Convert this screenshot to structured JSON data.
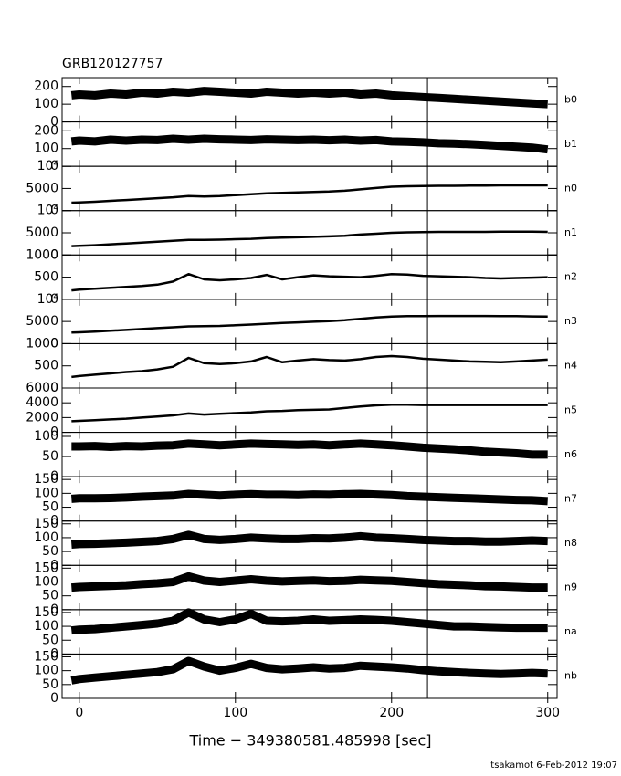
{
  "footer": "tsakamot  6-Feb-2012 19:07",
  "chart_data": [
    {
      "type": "line",
      "title": "GRB120127757",
      "label": "b0",
      "xlim": [
        -11,
        306
      ],
      "xticks": [
        0,
        100,
        200,
        300
      ],
      "ylim": [
        0,
        250
      ],
      "yticks": [
        0,
        100,
        200
      ],
      "vline": 223,
      "color": "#000000",
      "x": [
        -5,
        0,
        10,
        20,
        30,
        40,
        50,
        60,
        70,
        80,
        90,
        100,
        110,
        120,
        130,
        140,
        150,
        160,
        170,
        180,
        190,
        200,
        210,
        220,
        230,
        240,
        250,
        260,
        270,
        280,
        290,
        300
      ],
      "values": [
        150,
        155,
        150,
        160,
        155,
        165,
        160,
        170,
        165,
        175,
        170,
        165,
        160,
        170,
        165,
        160,
        165,
        160,
        165,
        155,
        160,
        150,
        145,
        140,
        135,
        130,
        125,
        120,
        115,
        110,
        105,
        100
      ]
    },
    {
      "type": "line",
      "label": "b1",
      "xlim": [
        -11,
        306
      ],
      "xticks": [
        0,
        100,
        200,
        300
      ],
      "ylim": [
        0,
        250
      ],
      "yticks": [
        0,
        100,
        200
      ],
      "vline": 223,
      "color": "#000000",
      "x": [
        -5,
        0,
        10,
        20,
        30,
        40,
        50,
        60,
        70,
        80,
        90,
        100,
        110,
        120,
        130,
        140,
        150,
        160,
        170,
        180,
        190,
        200,
        210,
        220,
        230,
        240,
        250,
        260,
        270,
        280,
        290,
        300
      ],
      "values": [
        140,
        145,
        140,
        150,
        145,
        150,
        148,
        155,
        150,
        155,
        152,
        150,
        148,
        152,
        150,
        148,
        150,
        147,
        150,
        145,
        148,
        140,
        138,
        135,
        130,
        128,
        125,
        120,
        115,
        110,
        105,
        95
      ]
    },
    {
      "type": "line",
      "label": "n0",
      "xlim": [
        -11,
        306
      ],
      "xticks": [
        0,
        100,
        200,
        300
      ],
      "ylim": [
        0,
        10000
      ],
      "yticks": [
        0,
        5000,
        {
          "value": 10000,
          "label": "10⁴"
        }
      ],
      "vline": 223,
      "color": "#000000",
      "x": [
        -5,
        0,
        10,
        20,
        30,
        40,
        50,
        60,
        70,
        80,
        90,
        100,
        110,
        120,
        130,
        140,
        150,
        160,
        170,
        180,
        190,
        200,
        210,
        220,
        230,
        240,
        250,
        260,
        270,
        280,
        290,
        300
      ],
      "values": [
        1800,
        1850,
        2000,
        2200,
        2400,
        2600,
        2800,
        3000,
        3300,
        3200,
        3300,
        3500,
        3700,
        3900,
        4000,
        4100,
        4200,
        4300,
        4500,
        4800,
        5100,
        5400,
        5500,
        5550,
        5600,
        5600,
        5650,
        5650,
        5700,
        5700,
        5700,
        5700
      ]
    },
    {
      "type": "line",
      "label": "n1",
      "xlim": [
        -11,
        306
      ],
      "xticks": [
        0,
        100,
        200,
        300
      ],
      "ylim": [
        0,
        10000
      ],
      "yticks": [
        0,
        5000,
        {
          "value": 10000,
          "label": "10⁴"
        }
      ],
      "vline": 223,
      "color": "#000000",
      "x": [
        -5,
        0,
        10,
        20,
        30,
        40,
        50,
        60,
        70,
        80,
        90,
        100,
        110,
        120,
        130,
        140,
        150,
        160,
        170,
        180,
        190,
        200,
        210,
        220,
        230,
        240,
        250,
        260,
        270,
        280,
        290,
        300
      ],
      "values": [
        2000,
        2050,
        2200,
        2400,
        2600,
        2800,
        3000,
        3200,
        3400,
        3400,
        3450,
        3550,
        3650,
        3800,
        3900,
        4000,
        4100,
        4200,
        4350,
        4600,
        4800,
        5000,
        5100,
        5150,
        5200,
        5200,
        5200,
        5200,
        5250,
        5250,
        5250,
        5200
      ]
    },
    {
      "type": "line",
      "label": "n2",
      "xlim": [
        -11,
        306
      ],
      "xticks": [
        0,
        100,
        200,
        300
      ],
      "ylim": [
        0,
        1000
      ],
      "yticks": [
        0,
        500,
        1000
      ],
      "vline": 223,
      "color": "#000000",
      "x": [
        -5,
        0,
        10,
        20,
        30,
        40,
        50,
        60,
        70,
        80,
        90,
        100,
        110,
        120,
        130,
        140,
        150,
        160,
        170,
        180,
        190,
        200,
        210,
        220,
        230,
        240,
        250,
        260,
        270,
        280,
        290,
        300
      ],
      "values": [
        200,
        220,
        240,
        260,
        280,
        300,
        330,
        400,
        570,
        450,
        430,
        450,
        480,
        550,
        450,
        500,
        540,
        520,
        510,
        500,
        530,
        570,
        560,
        530,
        520,
        510,
        500,
        480,
        470,
        480,
        490,
        500
      ]
    },
    {
      "type": "line",
      "label": "n3",
      "xlim": [
        -11,
        306
      ],
      "xticks": [
        0,
        100,
        200,
        300
      ],
      "ylim": [
        0,
        10000
      ],
      "yticks": [
        0,
        5000,
        {
          "value": 10000,
          "label": "10⁴"
        }
      ],
      "vline": 223,
      "color": "#000000",
      "x": [
        -5,
        0,
        10,
        20,
        30,
        40,
        50,
        60,
        70,
        80,
        90,
        100,
        110,
        120,
        130,
        140,
        150,
        160,
        170,
        180,
        190,
        200,
        210,
        220,
        230,
        240,
        250,
        260,
        270,
        280,
        290,
        300
      ],
      "values": [
        2500,
        2550,
        2700,
        2900,
        3100,
        3300,
        3500,
        3700,
        3900,
        3950,
        4000,
        4150,
        4300,
        4500,
        4650,
        4800,
        4950,
        5100,
        5300,
        5600,
        5900,
        6100,
        6200,
        6200,
        6250,
        6250,
        6250,
        6250,
        6200,
        6200,
        6150,
        6100
      ]
    },
    {
      "type": "line",
      "label": "n4",
      "xlim": [
        -11,
        306
      ],
      "xticks": [
        0,
        100,
        200,
        300
      ],
      "ylim": [
        0,
        1000
      ],
      "yticks": [
        0,
        500,
        1000
      ],
      "vline": 223,
      "color": "#000000",
      "x": [
        -5,
        0,
        10,
        20,
        30,
        40,
        50,
        60,
        70,
        80,
        90,
        100,
        110,
        120,
        130,
        140,
        150,
        160,
        170,
        180,
        190,
        200,
        210,
        220,
        230,
        240,
        250,
        260,
        270,
        280,
        290,
        300
      ],
      "values": [
        250,
        270,
        300,
        330,
        360,
        380,
        420,
        480,
        680,
        560,
        540,
        560,
        600,
        700,
        580,
        620,
        650,
        630,
        620,
        650,
        700,
        720,
        700,
        660,
        640,
        620,
        600,
        590,
        580,
        600,
        620,
        640
      ]
    },
    {
      "type": "line",
      "label": "n5",
      "xlim": [
        -11,
        306
      ],
      "xticks": [
        0,
        100,
        200,
        300
      ],
      "ylim": [
        0,
        6000
      ],
      "yticks": [
        0,
        2000,
        4000,
        6000
      ],
      "vline": 223,
      "color": "#000000",
      "x": [
        -5,
        0,
        10,
        20,
        30,
        40,
        50,
        60,
        70,
        80,
        90,
        100,
        110,
        120,
        130,
        140,
        150,
        160,
        170,
        180,
        190,
        200,
        210,
        220,
        230,
        240,
        250,
        260,
        270,
        280,
        290,
        300
      ],
      "values": [
        1500,
        1550,
        1650,
        1750,
        1850,
        2000,
        2150,
        2300,
        2550,
        2400,
        2500,
        2600,
        2700,
        2850,
        2900,
        3000,
        3050,
        3100,
        3300,
        3500,
        3650,
        3750,
        3750,
        3700,
        3700,
        3700,
        3700,
        3700,
        3700,
        3700,
        3700,
        3700
      ]
    },
    {
      "type": "line",
      "label": "n6",
      "xlim": [
        -11,
        306
      ],
      "xticks": [
        0,
        100,
        200,
        300
      ],
      "ylim": [
        0,
        110
      ],
      "yticks": [
        0,
        50,
        100
      ],
      "vline": 223,
      "color": "#000000",
      "x": [
        -5,
        0,
        10,
        20,
        30,
        40,
        50,
        60,
        70,
        80,
        90,
        100,
        110,
        120,
        130,
        140,
        150,
        160,
        170,
        180,
        190,
        200,
        210,
        220,
        230,
        240,
        250,
        260,
        270,
        280,
        290,
        300
      ],
      "values": [
        75,
        75,
        76,
        74,
        76,
        75,
        77,
        78,
        82,
        80,
        78,
        80,
        82,
        81,
        80,
        79,
        80,
        78,
        80,
        82,
        80,
        78,
        75,
        72,
        70,
        68,
        65,
        62,
        60,
        58,
        55,
        55
      ]
    },
    {
      "type": "line",
      "label": "n7",
      "xlim": [
        -11,
        306
      ],
      "xticks": [
        0,
        100,
        200,
        300
      ],
      "ylim": [
        0,
        160
      ],
      "yticks": [
        0,
        50,
        100,
        150
      ],
      "vline": 223,
      "color": "#000000",
      "x": [
        -5,
        0,
        10,
        20,
        30,
        40,
        50,
        60,
        70,
        80,
        90,
        100,
        110,
        120,
        130,
        140,
        150,
        160,
        170,
        180,
        190,
        200,
        210,
        220,
        230,
        240,
        250,
        260,
        270,
        280,
        290,
        300
      ],
      "values": [
        80,
        82,
        82,
        83,
        85,
        88,
        90,
        92,
        98,
        95,
        92,
        95,
        97,
        95,
        95,
        94,
        96,
        95,
        97,
        98,
        96,
        94,
        90,
        88,
        86,
        84,
        82,
        80,
        78,
        76,
        75,
        72
      ]
    },
    {
      "type": "line",
      "label": "n8",
      "xlim": [
        -11,
        306
      ],
      "xticks": [
        0,
        100,
        200,
        300
      ],
      "ylim": [
        0,
        160
      ],
      "yticks": [
        0,
        50,
        100,
        150
      ],
      "vline": 223,
      "color": "#000000",
      "x": [
        -5,
        0,
        10,
        20,
        30,
        40,
        50,
        60,
        70,
        80,
        90,
        100,
        110,
        120,
        130,
        140,
        150,
        160,
        170,
        180,
        190,
        200,
        210,
        220,
        230,
        240,
        250,
        260,
        270,
        280,
        290,
        300
      ],
      "values": [
        75,
        77,
        78,
        80,
        82,
        85,
        88,
        95,
        110,
        95,
        92,
        95,
        100,
        97,
        95,
        95,
        98,
        97,
        100,
        105,
        100,
        98,
        95,
        92,
        90,
        88,
        88,
        86,
        86,
        88,
        90,
        88
      ]
    },
    {
      "type": "line",
      "label": "n9",
      "xlim": [
        -11,
        306
      ],
      "xticks": [
        0,
        100,
        200,
        300
      ],
      "ylim": [
        0,
        160
      ],
      "yticks": [
        0,
        50,
        100,
        150
      ],
      "vline": 223,
      "color": "#000000",
      "x": [
        -5,
        0,
        10,
        20,
        30,
        40,
        50,
        60,
        70,
        80,
        90,
        100,
        110,
        120,
        130,
        140,
        150,
        160,
        170,
        180,
        190,
        200,
        210,
        220,
        230,
        240,
        250,
        260,
        270,
        280,
        290,
        300
      ],
      "values": [
        80,
        82,
        84,
        86,
        88,
        92,
        95,
        100,
        120,
        105,
        100,
        105,
        110,
        105,
        102,
        104,
        106,
        103,
        104,
        108,
        106,
        104,
        100,
        96,
        92,
        90,
        88,
        85,
        84,
        82,
        80,
        80
      ]
    },
    {
      "type": "line",
      "label": "na",
      "xlim": [
        -11,
        306
      ],
      "xticks": [
        0,
        100,
        200,
        300
      ],
      "ylim": [
        0,
        160
      ],
      "yticks": [
        0,
        50,
        100,
        150
      ],
      "vline": 223,
      "color": "#000000",
      "x": [
        -5,
        0,
        10,
        20,
        30,
        40,
        50,
        60,
        70,
        80,
        90,
        100,
        110,
        120,
        130,
        140,
        150,
        160,
        170,
        180,
        190,
        200,
        210,
        220,
        230,
        240,
        250,
        260,
        270,
        280,
        290,
        300
      ],
      "values": [
        85,
        88,
        90,
        95,
        100,
        105,
        110,
        120,
        150,
        125,
        115,
        125,
        145,
        120,
        118,
        120,
        125,
        120,
        122,
        125,
        123,
        120,
        115,
        110,
        105,
        100,
        100,
        98,
        96,
        95,
        95,
        95
      ]
    },
    {
      "type": "line",
      "label": "nb",
      "xlabel": "Time − 349380581.485998 [sec]",
      "xlim": [
        -11,
        306
      ],
      "xticks": [
        0,
        100,
        200,
        300
      ],
      "ylim": [
        0,
        160
      ],
      "yticks": [
        0,
        50,
        100,
        150
      ],
      "vline": 223,
      "color": "#000000",
      "x": [
        -5,
        0,
        10,
        20,
        30,
        40,
        50,
        60,
        70,
        80,
        90,
        100,
        110,
        120,
        130,
        140,
        150,
        160,
        170,
        180,
        190,
        200,
        210,
        220,
        230,
        240,
        250,
        260,
        270,
        280,
        290,
        300
      ],
      "values": [
        65,
        70,
        75,
        80,
        85,
        90,
        95,
        105,
        135,
        115,
        100,
        110,
        125,
        110,
        105,
        108,
        112,
        108,
        110,
        118,
        115,
        112,
        108,
        102,
        98,
        95,
        92,
        90,
        88,
        90,
        92,
        90
      ]
    }
  ]
}
